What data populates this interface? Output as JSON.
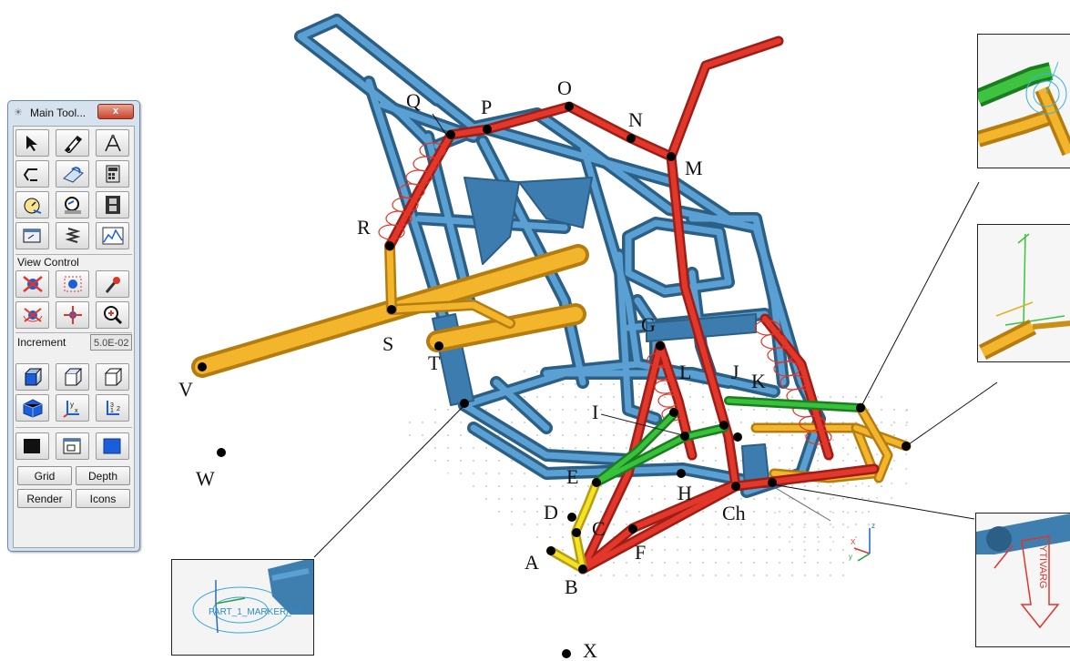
{
  "toolbox": {
    "title": "Main Tool...",
    "close_label": "x",
    "view_control_label": "View Control",
    "increment_label": "Increment",
    "increment_value": "5.0E-02",
    "grid_label": "Grid",
    "depth_label": "Depth",
    "render_label": "Render",
    "icons_label": "Icons"
  },
  "points": {
    "A": "A",
    "B": "B",
    "C": "C",
    "Ch": "Ch",
    "D": "D",
    "E": "E",
    "F": "F",
    "G": "G",
    "H": "H",
    "I": "I",
    "J": "J",
    "K": "K",
    "L": "L",
    "M": "M",
    "N": "N",
    "O": "O",
    "P": "P",
    "Q": "Q",
    "R": "R",
    "S": "S",
    "T": "T",
    "V": "V",
    "W": "W",
    "X": "X"
  },
  "triad": {
    "x": "X",
    "y": "y",
    "z": "z"
  },
  "inset_marker_label": "PART_1_MARKER_16",
  "inset_vertical_text": "YTIVARG",
  "colors": {
    "frame_blue": "#3f7fb0",
    "suspension_red": "#d63025",
    "link_green": "#27a52c",
    "link_yellow": "#f0df1c",
    "axle_orange": "#e3a31c"
  }
}
